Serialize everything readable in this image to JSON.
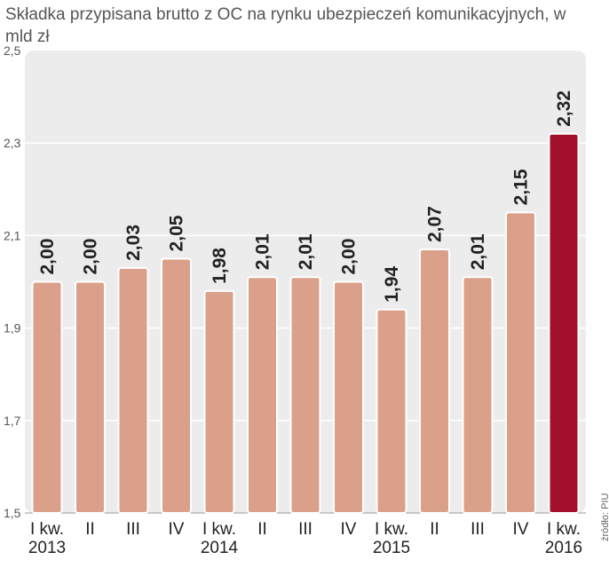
{
  "chart_data": {
    "type": "bar",
    "title": "Składka przypisana brutto z OC na rynku ubezpieczeń komunikacyjnych, w mld zł",
    "categories": [
      "I kw.\n2013",
      "II",
      "III",
      "IV",
      "I kw.\n2014",
      "II",
      "III",
      "IV",
      "I kw.\n2015",
      "II",
      "III",
      "IV",
      "I kw.\n2016"
    ],
    "values": [
      2.0,
      2.0,
      2.03,
      2.05,
      1.98,
      2.01,
      2.01,
      2.0,
      1.94,
      2.07,
      2.01,
      2.15,
      2.32
    ],
    "value_labels": [
      "2,00",
      "2,00",
      "2,03",
      "2,05",
      "1,98",
      "2,01",
      "2,01",
      "2,00",
      "1,94",
      "2,07",
      "2,01",
      "2,15",
      "2,32"
    ],
    "yticks": [
      1.5,
      1.7,
      1.9,
      2.1,
      2.3,
      2.5
    ],
    "ytick_labels": [
      "1,5",
      "1,7",
      "1,9",
      "2,1",
      "2,3",
      "2,5"
    ],
    "ylim": [
      1.5,
      2.5
    ],
    "xlabel": "",
    "ylabel": "",
    "grid": true,
    "highlight_index": 12,
    "colors": {
      "bar": "#dba08a",
      "highlight": "#a2102c",
      "plot_bg": "#ececec",
      "grid": "#ffffff"
    }
  },
  "source": "źródło: PIU"
}
